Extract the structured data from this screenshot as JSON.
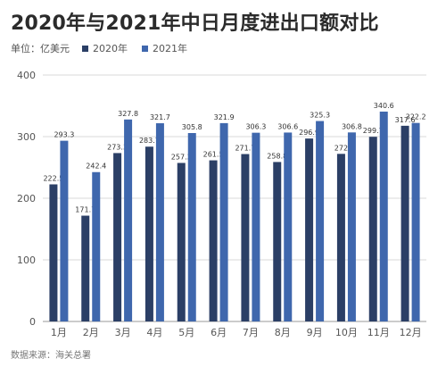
{
  "title": "2020年与2021年中日月度进出口额对比",
  "unit_label": "单位：亿美元",
  "source_label": "数据来源：海关总署",
  "colors": {
    "s2020": "#2b3f66",
    "s2021": "#3f67ad",
    "grid": "#d8d8d8",
    "axis_text": "#555555"
  },
  "chart_data": {
    "type": "bar",
    "categories": [
      "1月",
      "2月",
      "3月",
      "4月",
      "5月",
      "6月",
      "7月",
      "8月",
      "9月",
      "10月",
      "11月",
      "12月"
    ],
    "series": [
      {
        "name": "2020年",
        "values": [
          222.5,
          171.7,
          273.3,
          283.7,
          257.3,
          261.5,
          271.7,
          258.8,
          296.9,
          272,
          299.7,
          317.6
        ]
      },
      {
        "name": "2021年",
        "values": [
          293.3,
          242.4,
          327.8,
          321.7,
          305.8,
          321.9,
          306.3,
          306.6,
          325.3,
          306.8,
          340.6,
          322.2
        ]
      }
    ],
    "ylim": [
      0,
      400
    ],
    "yticks": [
      0,
      100,
      200,
      300,
      400
    ],
    "grid": true,
    "legend": "top-left"
  }
}
